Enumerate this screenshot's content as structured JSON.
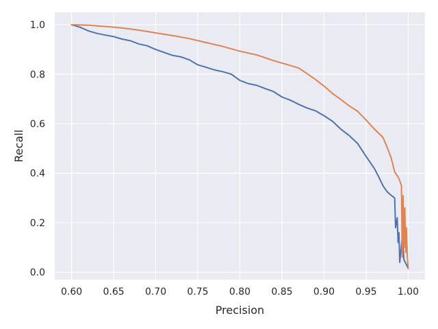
{
  "chart_data": {
    "type": "line",
    "xlabel": "Precision",
    "ylabel": "Recall",
    "xlim": [
      0.58,
      1.02
    ],
    "ylim": [
      -0.03,
      1.05
    ],
    "grid": true,
    "x_ticks": [
      "0.60",
      "0.65",
      "0.70",
      "0.75",
      "0.80",
      "0.85",
      "0.90",
      "0.95",
      "1.00"
    ],
    "y_ticks": [
      "0.0",
      "0.2",
      "0.4",
      "0.6",
      "0.8",
      "1.0"
    ],
    "series": [
      {
        "color": "#4c72b0",
        "points": [
          [
            0.6,
            1.0
          ],
          [
            0.61,
            0.99
          ],
          [
            0.62,
            0.975
          ],
          [
            0.63,
            0.965
          ],
          [
            0.64,
            0.958
          ],
          [
            0.65,
            0.952
          ],
          [
            0.66,
            0.942
          ],
          [
            0.67,
            0.935
          ],
          [
            0.68,
            0.922
          ],
          [
            0.69,
            0.915
          ],
          [
            0.7,
            0.9
          ],
          [
            0.71,
            0.888
          ],
          [
            0.72,
            0.876
          ],
          [
            0.73,
            0.87
          ],
          [
            0.74,
            0.858
          ],
          [
            0.75,
            0.838
          ],
          [
            0.76,
            0.828
          ],
          [
            0.77,
            0.817
          ],
          [
            0.78,
            0.81
          ],
          [
            0.79,
            0.8
          ],
          [
            0.8,
            0.775
          ],
          [
            0.81,
            0.762
          ],
          [
            0.82,
            0.755
          ],
          [
            0.83,
            0.742
          ],
          [
            0.84,
            0.73
          ],
          [
            0.85,
            0.708
          ],
          [
            0.86,
            0.695
          ],
          [
            0.87,
            0.678
          ],
          [
            0.88,
            0.663
          ],
          [
            0.89,
            0.652
          ],
          [
            0.9,
            0.632
          ],
          [
            0.91,
            0.61
          ],
          [
            0.92,
            0.578
          ],
          [
            0.93,
            0.552
          ],
          [
            0.94,
            0.52
          ],
          [
            0.95,
            0.468
          ],
          [
            0.96,
            0.418
          ],
          [
            0.965,
            0.385
          ],
          [
            0.97,
            0.35
          ],
          [
            0.975,
            0.325
          ],
          [
            0.98,
            0.31
          ],
          [
            0.984,
            0.3
          ],
          [
            0.985,
            0.18
          ],
          [
            0.987,
            0.22
          ],
          [
            0.988,
            0.12
          ],
          [
            0.989,
            0.16
          ],
          [
            0.99,
            0.04
          ],
          [
            0.993,
            0.14
          ],
          [
            0.995,
            0.05
          ],
          [
            0.998,
            0.03
          ],
          [
            1.0,
            0.015
          ]
        ]
      },
      {
        "color": "#dd8452",
        "points": [
          [
            0.6,
            1.0
          ],
          [
            0.62,
            0.998
          ],
          [
            0.64,
            0.993
          ],
          [
            0.66,
            0.987
          ],
          [
            0.68,
            0.978
          ],
          [
            0.7,
            0.967
          ],
          [
            0.72,
            0.956
          ],
          [
            0.74,
            0.944
          ],
          [
            0.76,
            0.928
          ],
          [
            0.78,
            0.912
          ],
          [
            0.8,
            0.893
          ],
          [
            0.82,
            0.878
          ],
          [
            0.84,
            0.855
          ],
          [
            0.86,
            0.835
          ],
          [
            0.87,
            0.825
          ],
          [
            0.88,
            0.802
          ],
          [
            0.89,
            0.778
          ],
          [
            0.9,
            0.752
          ],
          [
            0.91,
            0.722
          ],
          [
            0.92,
            0.698
          ],
          [
            0.93,
            0.672
          ],
          [
            0.94,
            0.65
          ],
          [
            0.95,
            0.615
          ],
          [
            0.96,
            0.578
          ],
          [
            0.97,
            0.545
          ],
          [
            0.975,
            0.505
          ],
          [
            0.98,
            0.46
          ],
          [
            0.984,
            0.405
          ],
          [
            0.988,
            0.385
          ],
          [
            0.99,
            0.37
          ],
          [
            0.992,
            0.35
          ],
          [
            0.993,
            0.06
          ],
          [
            0.994,
            0.31
          ],
          [
            0.995,
            0.1
          ],
          [
            0.996,
            0.26
          ],
          [
            0.997,
            0.08
          ],
          [
            0.998,
            0.18
          ],
          [
            0.999,
            0.06
          ],
          [
            1.0,
            0.015
          ]
        ]
      }
    ]
  }
}
